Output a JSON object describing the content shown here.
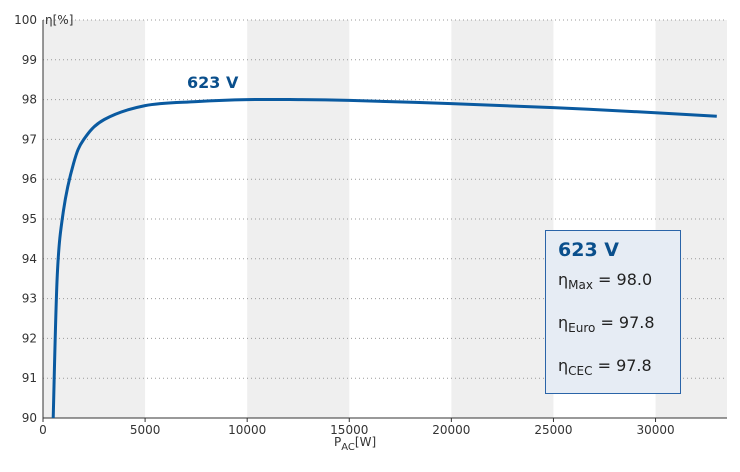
{
  "chart_data": {
    "type": "line",
    "x": [
      500,
      700,
      1000,
      1500,
      2000,
      3000,
      5000,
      7500,
      10000,
      12500,
      15000,
      20000,
      25000,
      30000,
      33000
    ],
    "series": [
      {
        "name": "623 V",
        "values": [
          90.0,
          93.6,
          95.2,
          96.4,
          97.0,
          97.5,
          97.85,
          97.95,
          98.0,
          98.0,
          97.98,
          97.9,
          97.8,
          97.67,
          97.58
        ],
        "color": "#0a5aa0"
      }
    ],
    "xlabel_main": "P",
    "xlabel_sub": "AC",
    "xlabel_unit": "[W]",
    "ylabel": "η[%]",
    "xlim": [
      0,
      33500
    ],
    "ylim": [
      90,
      100
    ],
    "xticks": [
      0,
      5000,
      10000,
      15000,
      20000,
      25000,
      30000
    ],
    "yticks": [
      90,
      91,
      92,
      93,
      94,
      95,
      96,
      97,
      98,
      99,
      100
    ],
    "grid": true,
    "legend": {
      "title": "623 V",
      "rows": [
        {
          "symbol": "η",
          "sub": "Max",
          "value": "= 98.0"
        },
        {
          "symbol": "η",
          "sub": "Euro",
          "value": "= 97.8"
        },
        {
          "symbol": "η",
          "sub": "CEC",
          "value": "= 97.8"
        }
      ],
      "position": "bottom-right"
    }
  }
}
